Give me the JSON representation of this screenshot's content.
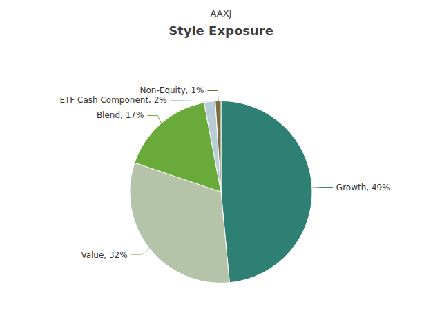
{
  "chart_data": {
    "type": "pie",
    "title": "Style Exposure",
    "subtitle": "AAXJ",
    "categories": [
      "Growth",
      "Value",
      "Blend",
      "ETF Cash Component",
      "Non-Equity"
    ],
    "values": [
      49,
      32,
      17,
      2,
      1
    ],
    "value_labels": [
      "Growth, 49%",
      "Value, 32%",
      "Blend, 17%",
      "ETF Cash Component, 2%",
      "Non-Equity, 1%"
    ],
    "data_labels": true,
    "colors": [
      "#2e7f74",
      "#b5c4a8",
      "#6aaa3a",
      "#b8ccd8",
      "#7a6e3e"
    ]
  }
}
